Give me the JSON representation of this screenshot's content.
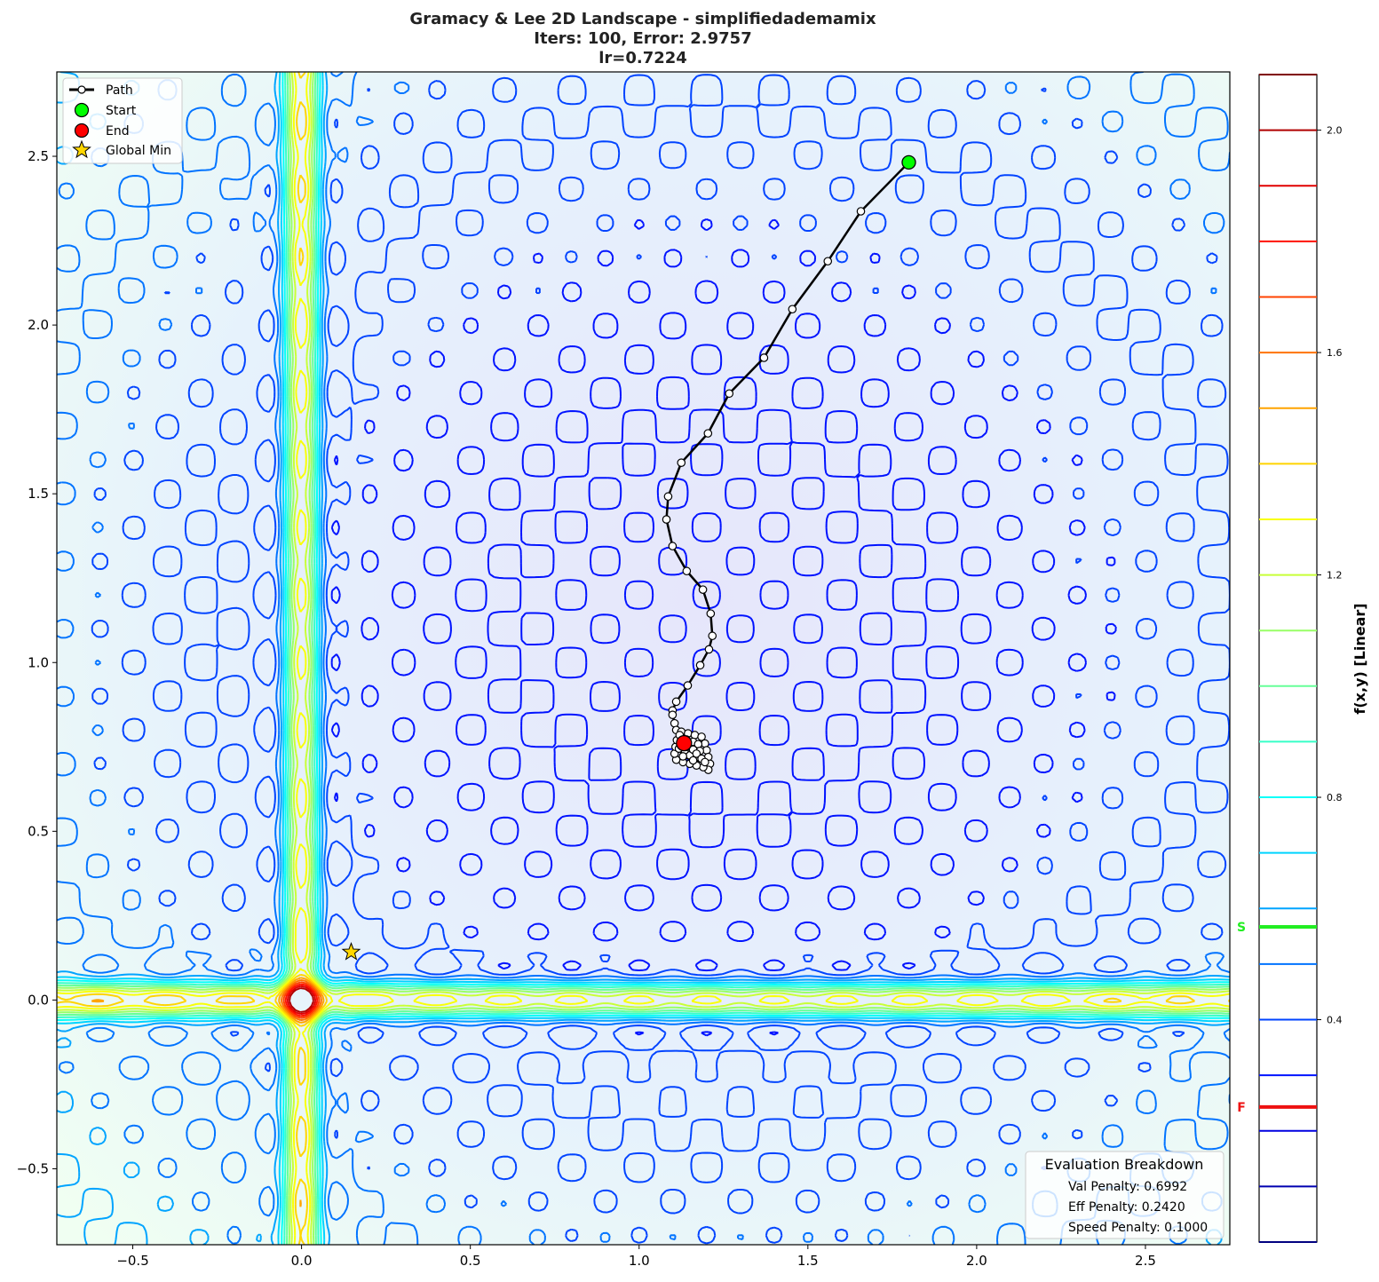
{
  "chart_data": {
    "type": "contour",
    "title_lines": [
      "Gramacy & Lee 2D Landscape - simplifiedademamix",
      "Iters: 100, Error: 2.9757",
      "lr=0.7224"
    ],
    "xlim": [
      -0.725,
      2.75
    ],
    "ylim": [
      -0.725,
      2.75
    ],
    "x_ticks": [
      "−0.5",
      "0.0",
      "0.5",
      "1.0",
      "1.5",
      "2.0",
      "2.5"
    ],
    "x_tick_values": [
      -0.5,
      0,
      0.5,
      1.0,
      1.5,
      2.0,
      2.5
    ],
    "y_ticks": [
      "−0.5",
      "0.0",
      "0.5",
      "1.0",
      "1.5",
      "2.0",
      "2.5"
    ],
    "y_tick_values": [
      -0.5,
      0,
      0.5,
      1.0,
      1.5,
      2.0,
      2.5
    ],
    "grid": false,
    "colorbar": {
      "label": "f(x,y) [Linear]",
      "range": [
        0.0,
        2.1
      ],
      "level_step": 0.1,
      "ticks": [
        "0.4",
        "0.8",
        "1.2",
        "1.6",
        "2.0"
      ],
      "tick_values": [
        0.4,
        0.8,
        1.2,
        1.6,
        2.0
      ],
      "colormap": "jet",
      "start_marker": {
        "label": "S",
        "value": 0.567,
        "color": "#22ee22"
      },
      "final_marker": {
        "label": "F",
        "value": 0.243,
        "color": "#ee1111"
      }
    },
    "legend": {
      "placement": "top-left",
      "entries": [
        "Path",
        "Start",
        "End",
        "Global Min"
      ]
    },
    "path": [
      [
        1.799,
        2.482
      ],
      [
        1.657,
        2.337
      ],
      [
        1.559,
        2.189
      ],
      [
        1.454,
        2.047
      ],
      [
        1.37,
        1.903
      ],
      [
        1.267,
        1.797
      ],
      [
        1.204,
        1.679
      ],
      [
        1.125,
        1.592
      ],
      [
        1.086,
        1.492
      ],
      [
        1.081,
        1.424
      ],
      [
        1.099,
        1.345
      ],
      [
        1.141,
        1.271
      ],
      [
        1.189,
        1.216
      ],
      [
        1.212,
        1.145
      ],
      [
        1.217,
        1.079
      ],
      [
        1.207,
        1.039
      ],
      [
        1.181,
        0.992
      ],
      [
        1.144,
        0.932
      ],
      [
        1.11,
        0.884
      ],
      [
        1.099,
        0.858
      ],
      [
        1.099,
        0.845
      ],
      [
        1.105,
        0.82
      ],
      [
        1.11,
        0.8
      ],
      [
        1.125,
        0.795
      ],
      [
        1.145,
        0.79
      ],
      [
        1.165,
        0.785
      ],
      [
        1.185,
        0.78
      ],
      [
        1.195,
        0.76
      ],
      [
        1.2,
        0.74
      ],
      [
        1.205,
        0.72
      ],
      [
        1.21,
        0.7
      ],
      [
        1.205,
        0.682
      ],
      [
        1.19,
        0.69
      ],
      [
        1.17,
        0.695
      ],
      [
        1.15,
        0.7
      ],
      [
        1.13,
        0.705
      ],
      [
        1.11,
        0.712
      ],
      [
        1.105,
        0.73
      ],
      [
        1.108,
        0.75
      ],
      [
        1.112,
        0.77
      ],
      [
        1.12,
        0.785
      ],
      [
        1.14,
        0.772
      ],
      [
        1.16,
        0.765
      ],
      [
        1.175,
        0.758
      ],
      [
        1.18,
        0.738
      ],
      [
        1.17,
        0.72
      ],
      [
        1.15,
        0.725
      ],
      [
        1.135,
        0.74
      ],
      [
        1.125,
        0.76
      ],
      [
        1.14,
        0.75
      ],
      [
        1.16,
        0.742
      ],
      [
        1.17,
        0.73
      ],
      [
        1.185,
        0.715
      ],
      [
        1.195,
        0.705
      ],
      [
        1.16,
        0.71
      ],
      [
        1.13,
        0.722
      ],
      [
        1.118,
        0.745
      ],
      [
        1.133,
        0.761
      ]
    ],
    "start": [
      1.799,
      2.482
    ],
    "end": [
      1.133,
      0.761
    ],
    "global_min": [
      0.147,
      0.142
    ],
    "colors": {
      "path": "#000000",
      "start": "#00ff00",
      "end": "#ff0000",
      "global_min": "#ffd700"
    }
  },
  "eval_box": {
    "title": "Evaluation Breakdown",
    "lines": [
      "Val Penalty: 0.6992",
      "Eff Penalty: 0.2420",
      "Speed Penalty: 0.1000"
    ]
  }
}
